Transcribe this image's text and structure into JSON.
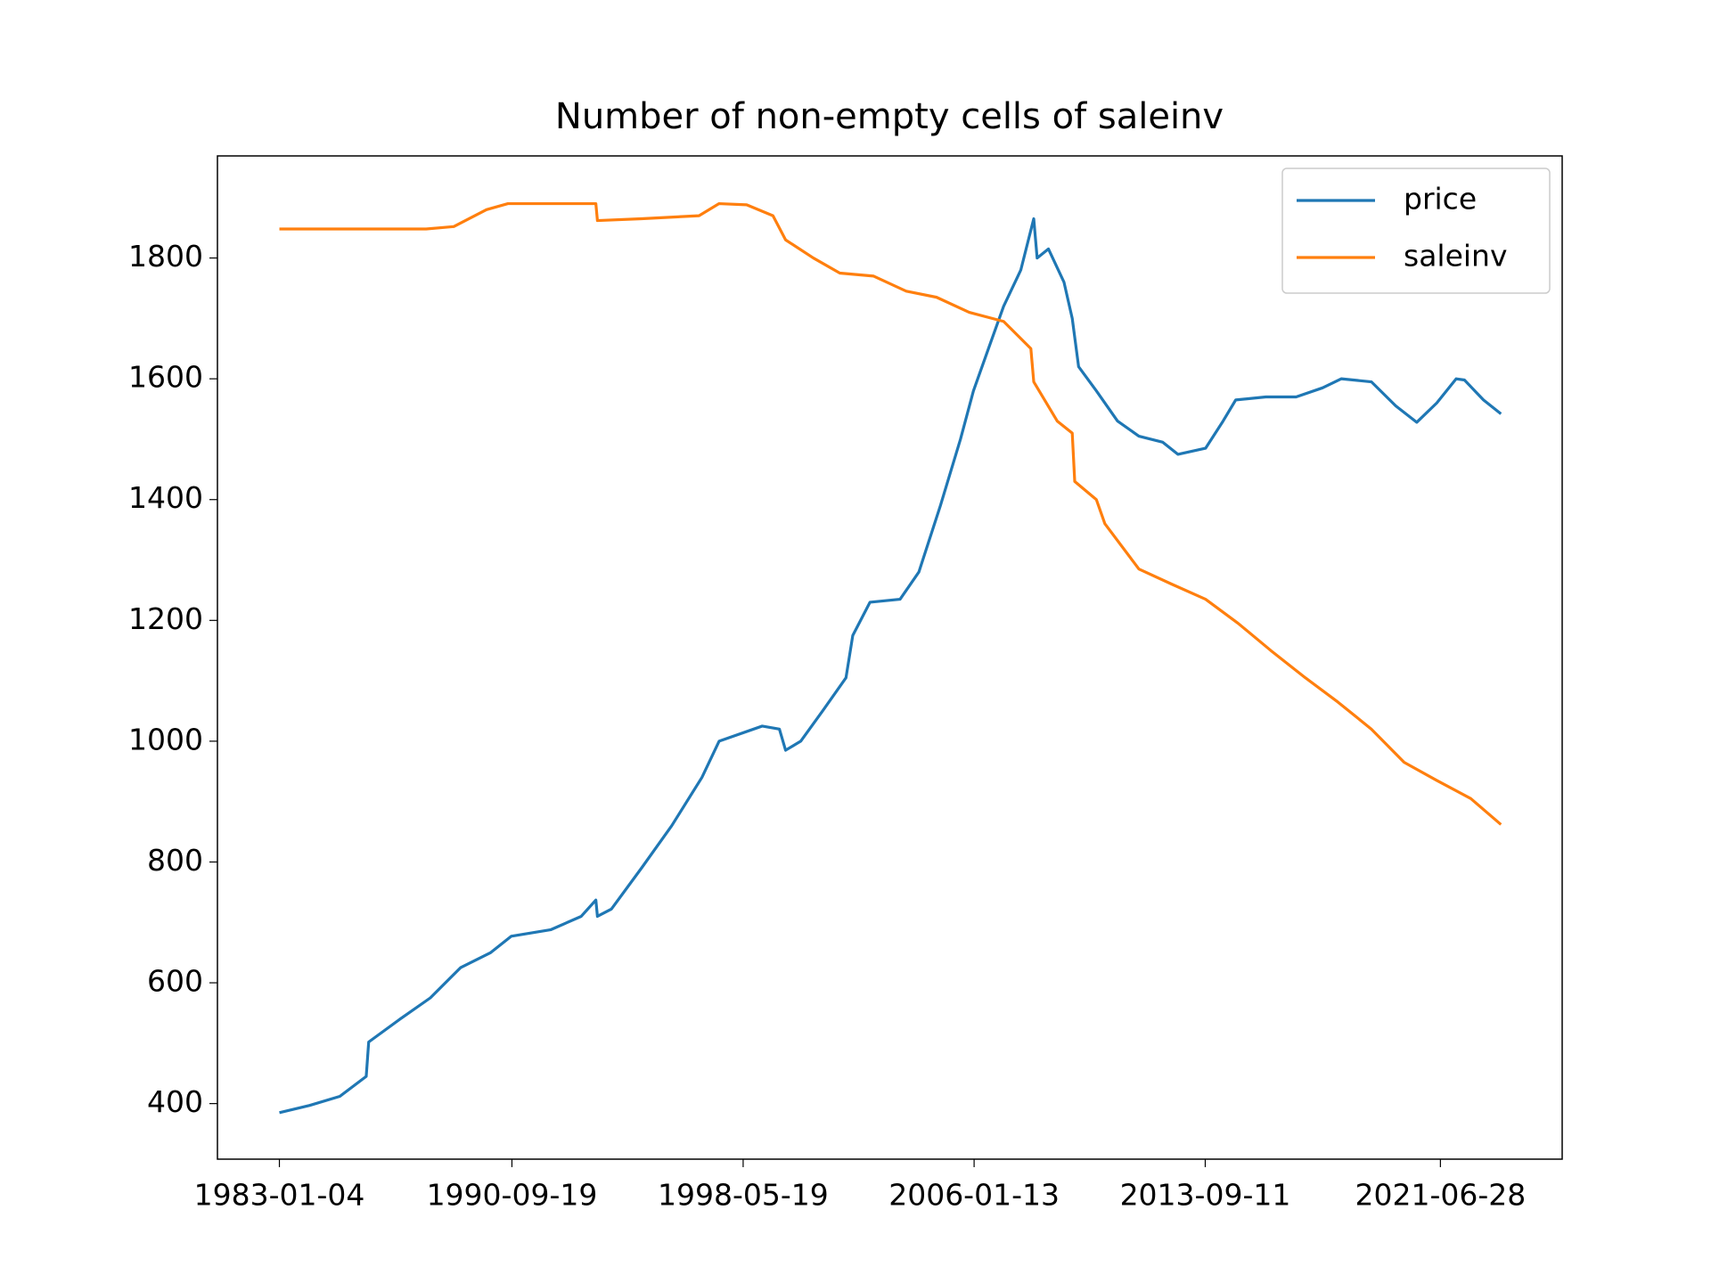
{
  "chart_data": {
    "type": "line",
    "title": "Number of non-empty cells of saleinv",
    "series": [
      {
        "name": "price",
        "color": "#1f77b4",
        "x": [
          "1983-01-04",
          "1984-01-05",
          "1985-01-05",
          "1985-11-20",
          "1985-12-20",
          "1987-01-05",
          "1988-01-05",
          "1989-01-05",
          "1990-01-05",
          "1990-09-10",
          "1992-01-05",
          "1993-01-05",
          "1993-07-01",
          "1993-07-20",
          "1994-01-05",
          "1995-01-05",
          "1996-01-05",
          "1997-01-05",
          "1997-08-01",
          "1999-01-05",
          "1999-08-01",
          "1999-10-15",
          "2000-04-15",
          "2001-01-05",
          "2001-10-15",
          "2002-01-05",
          "2002-08-01",
          "2003-08-01",
          "2004-03-15",
          "2004-12-01",
          "2005-08-01",
          "2006-01-05",
          "2006-08-01",
          "2007-01-05",
          "2007-08-01",
          "2008-01-05",
          "2008-02-15",
          "2008-07-01",
          "2009-01-05",
          "2009-04-15",
          "2009-07-01",
          "2010-02-01",
          "2010-10-15",
          "2011-07-01",
          "2012-04-15",
          "2012-10-15",
          "2013-09-15",
          "2014-04-15",
          "2014-09-15",
          "2015-09-15",
          "2016-09-15",
          "2017-08-01",
          "2018-03-15",
          "2019-03-15",
          "2020-01-05",
          "2020-09-15",
          "2021-05-15",
          "2022-01-05",
          "2022-04-15",
          "2022-12-01",
          "2023-07-01"
        ],
        "values": [
          385,
          397,
          412,
          445,
          502,
          540,
          575,
          625,
          650,
          677,
          688,
          710,
          737,
          710,
          722,
          790,
          860,
          940,
          1000,
          1025,
          1020,
          985,
          1000,
          1050,
          1105,
          1175,
          1230,
          1235,
          1280,
          1390,
          1500,
          1580,
          1660,
          1720,
          1780,
          1865,
          1800,
          1815,
          1760,
          1700,
          1620,
          1580,
          1530,
          1505,
          1495,
          1475,
          1485,
          1530,
          1565,
          1570,
          1570,
          1585,
          1600,
          1595,
          1555,
          1528,
          1560,
          1600,
          1598,
          1565,
          1542
        ]
      },
      {
        "name": "saleinv",
        "color": "#ff7f0e",
        "x": [
          "1983-01-04",
          "1987-11-15",
          "1988-10-15",
          "1989-11-15",
          "1990-08-01",
          "1993-07-01",
          "1993-07-20",
          "1995-01-05",
          "1996-12-01",
          "1997-08-01",
          "1998-07-01",
          "1999-05-15",
          "1999-10-15",
          "2000-09-15",
          "2001-08-01",
          "2002-09-15",
          "2003-10-15",
          "2004-10-15",
          "2005-11-15",
          "2007-01-05",
          "2007-12-01",
          "2008-01-05",
          "2008-10-15",
          "2009-04-15",
          "2009-05-15",
          "2010-02-01",
          "2010-05-15",
          "2011-07-01",
          "2012-08-01",
          "2013-09-15",
          "2014-10-15",
          "2015-11-15",
          "2017-01-05",
          "2018-02-01",
          "2019-03-15",
          "2020-04-15",
          "2021-05-15",
          "2022-07-01",
          "2023-07-01"
        ],
        "values": [
          1848,
          1848,
          1852,
          1880,
          1890,
          1890,
          1862,
          1865,
          1870,
          1890,
          1888,
          1870,
          1830,
          1800,
          1775,
          1770,
          1745,
          1735,
          1710,
          1695,
          1650,
          1595,
          1530,
          1510,
          1430,
          1400,
          1360,
          1285,
          1260,
          1235,
          1195,
          1150,
          1105,
          1065,
          1020,
          965,
          935,
          905,
          862
        ]
      }
    ],
    "xlim": [
      "1980-12-15",
      "2025-07-11"
    ],
    "xticks": [
      "1983-01-04",
      "1990-09-19",
      "1998-05-19",
      "2006-01-13",
      "2013-09-11",
      "2021-06-28"
    ],
    "ylim": [
      308,
      1969
    ],
    "yticks": [
      400,
      600,
      800,
      1000,
      1200,
      1400,
      1600,
      1800
    ],
    "grid": false,
    "legend": "upper right"
  }
}
